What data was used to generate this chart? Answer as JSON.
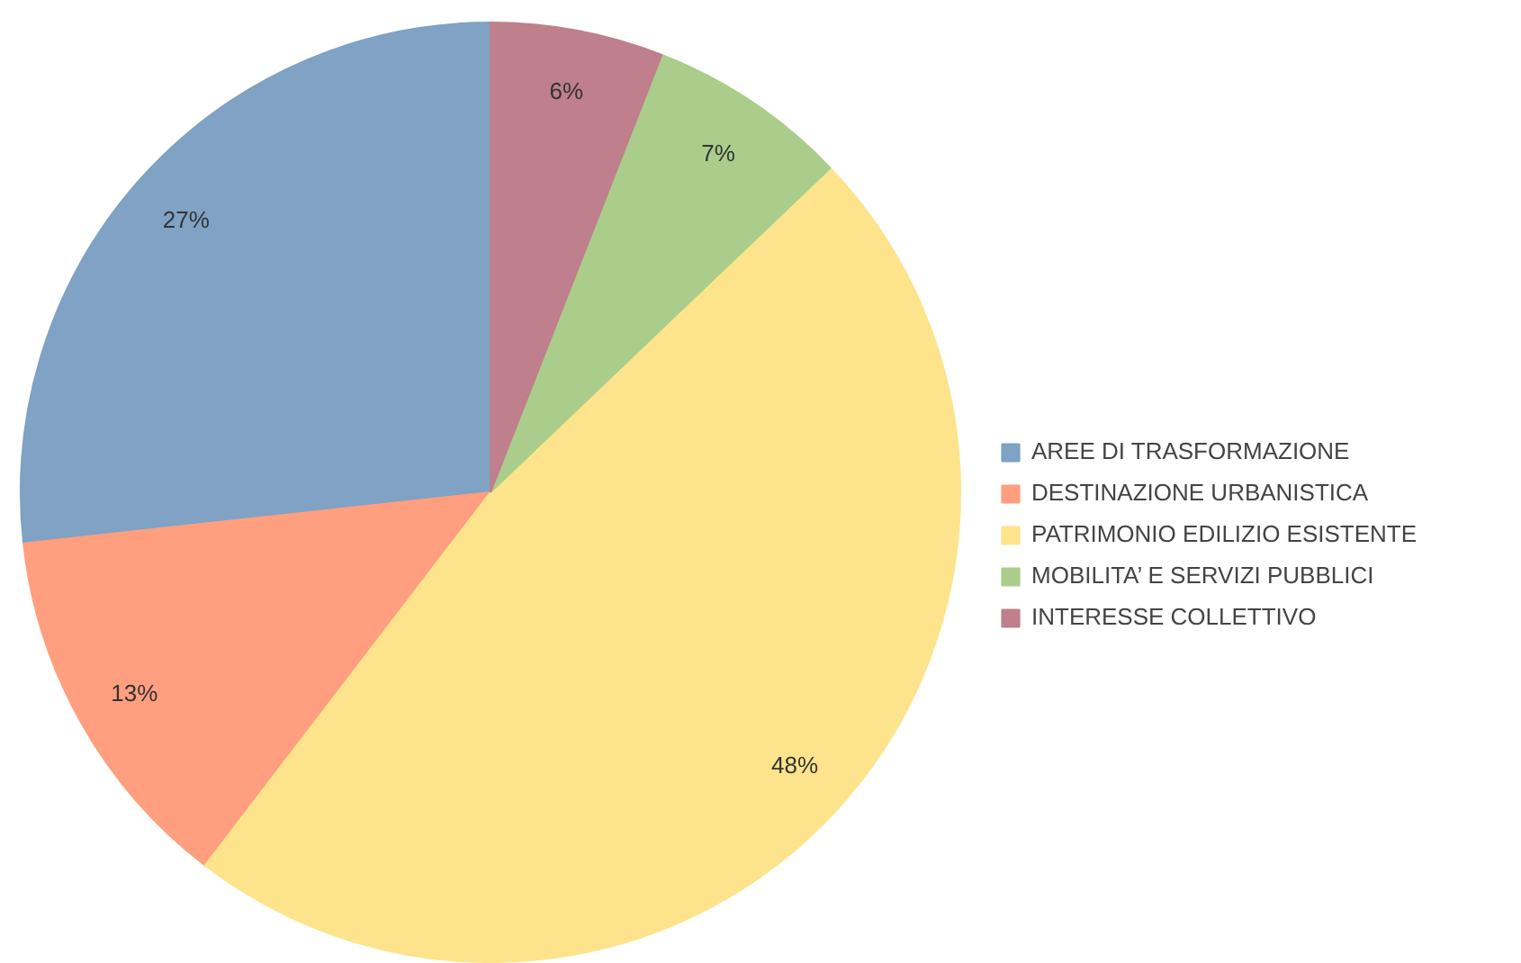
{
  "chart_data": {
    "type": "pie",
    "categories": [
      "AREE DI TRASFORMAZIONE",
      "DESTINAZIONE URBANISTICA",
      "PATRIMONIO EDILIZIO ESISTENTE",
      "MOBILITA’ E SERVIZI PUBBLICI",
      "INTERESSE COLLETTIVO"
    ],
    "values": [
      27,
      13,
      48,
      7,
      6
    ],
    "colors": [
      "#7fa2c5",
      "#ff9f7f",
      "#fde48c",
      "#aacd8b",
      "#bf7f8c"
    ],
    "value_labels": [
      "27%",
      "13%",
      "48%",
      "7%",
      "6%"
    ],
    "legend": "right"
  }
}
